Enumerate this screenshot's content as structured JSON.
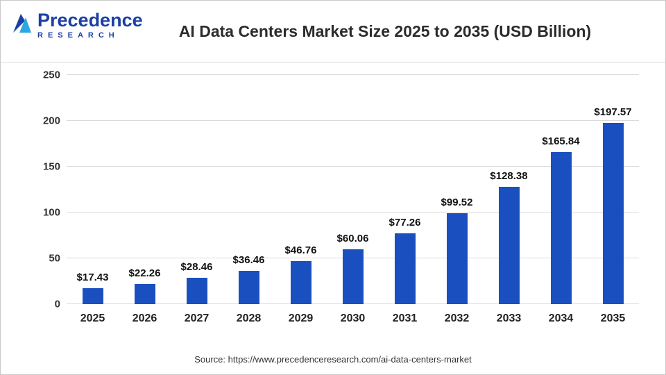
{
  "header": {
    "title": "AI Data Centers Market Size 2025 to 2035 (USD Billion)",
    "logo": {
      "name": "Precedence",
      "subtitle": "RESEARCH",
      "primary_color": "#1b3fa3",
      "accent_color": "#2ba8e0"
    }
  },
  "chart_data": {
    "type": "bar",
    "title": "AI Data Centers Market Size 2025 to 2035 (USD Billion)",
    "categories": [
      "2025",
      "2026",
      "2027",
      "2028",
      "2029",
      "2030",
      "2031",
      "2032",
      "2033",
      "2034",
      "2035"
    ],
    "values": [
      17.43,
      22.26,
      28.46,
      36.46,
      46.76,
      60.06,
      77.26,
      99.52,
      128.38,
      165.84,
      197.57
    ],
    "value_labels": [
      "$17.43",
      "$22.26",
      "$28.46",
      "$36.46",
      "$46.76",
      "$60.06",
      "$77.26",
      "$99.52",
      "$128.38",
      "$165.84",
      "$197.57"
    ],
    "unit": "USD Billion",
    "xlabel": "",
    "ylabel": "",
    "ylim": [
      0,
      250
    ],
    "yticks": [
      0,
      50,
      100,
      150,
      200,
      250
    ],
    "bar_color": "#1a4fc0",
    "grid": "horizontal",
    "legend": "none"
  },
  "footer": {
    "source": "Source: https://www.precedenceresearch.com/ai-data-centers-market"
  }
}
